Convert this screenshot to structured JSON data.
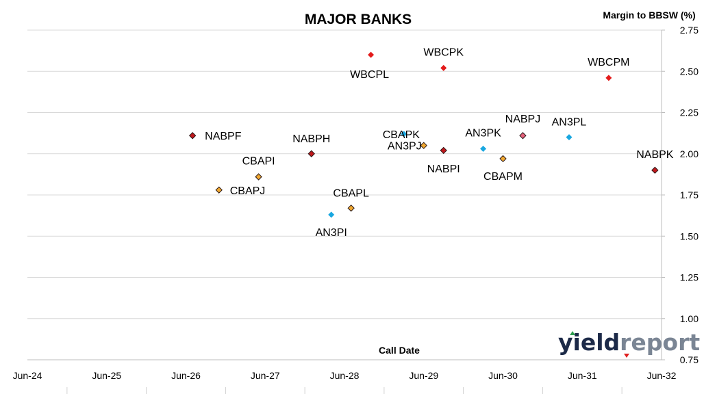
{
  "chart_data": {
    "type": "scatter",
    "title": "MAJOR BANKS",
    "ylabel": "Margin to BBSW (%)",
    "xlabel": "Call Date",
    "x_ticks": [
      "Jun-24",
      "Jun-25",
      "Jun-26",
      "Jun-27",
      "Jun-28",
      "Jun-29",
      "Jun-30",
      "Jun-31",
      "Jun-32"
    ],
    "y_ticks": [
      "2.75",
      "2.50",
      "2.25",
      "2.00",
      "1.75",
      "1.50",
      "1.25",
      "1.00",
      "0.75"
    ],
    "xlim": [
      "Jun-24",
      "Jun-32"
    ],
    "ylim": [
      0.75,
      2.75
    ],
    "y_axis_side": "right",
    "grid": "horizontal",
    "colors": {
      "red": "#e31b1b",
      "dark_red": "#c0181c",
      "orange": "#f0a830",
      "blue": "#19a7e0",
      "pink": "#e4607a"
    },
    "points": [
      {
        "label": "NABPF",
        "x": "2026-07",
        "y": 2.11,
        "color": "dark_red",
        "outlined": true
      },
      {
        "label": "CBAPJ",
        "x": "2026-11",
        "y": 1.78,
        "color": "orange",
        "outlined": true
      },
      {
        "label": "CBAPI",
        "x": "2027-05",
        "y": 1.86,
        "color": "orange",
        "outlined": true
      },
      {
        "label": "NABPH",
        "x": "2028-01",
        "y": 2.0,
        "color": "dark_red",
        "outlined": true
      },
      {
        "label": "AN3PI",
        "x": "2028-04",
        "y": 1.63,
        "color": "blue",
        "outlined": false
      },
      {
        "label": "CBAPL",
        "x": "2028-07",
        "y": 1.67,
        "color": "orange",
        "outlined": true
      },
      {
        "label": "WBCPL",
        "x": "2028-10",
        "y": 2.6,
        "color": "red",
        "outlined": false
      },
      {
        "label": "CBAPK",
        "x": "2029-03",
        "y": 2.12,
        "color": "blue",
        "outlined": false
      },
      {
        "label": "AN3PJ",
        "x": "2029-06",
        "y": 2.05,
        "color": "orange",
        "outlined": true
      },
      {
        "label": "WBCPK",
        "x": "2029-09",
        "y": 2.52,
        "color": "red",
        "outlined": false
      },
      {
        "label": "NABPI",
        "x": "2029-09",
        "y": 2.02,
        "color": "dark_red",
        "outlined": true
      },
      {
        "label": "AN3PK",
        "x": "2030-03",
        "y": 2.03,
        "color": "blue",
        "outlined": false
      },
      {
        "label": "CBAPM",
        "x": "2030-06",
        "y": 1.97,
        "color": "orange",
        "outlined": true
      },
      {
        "label": "NABPJ",
        "x": "2030-09",
        "y": 2.11,
        "color": "pink",
        "outlined": true
      },
      {
        "label": "AN3PL",
        "x": "2031-04",
        "y": 2.1,
        "color": "blue",
        "outlined": false
      },
      {
        "label": "WBCPM",
        "x": "2031-10",
        "y": 2.46,
        "color": "red",
        "outlined": false
      },
      {
        "label": "NABPK",
        "x": "2032-05",
        "y": 1.9,
        "color": "dark_red",
        "outlined": true
      }
    ]
  },
  "logo": {
    "text_dark": "yield",
    "text_light": "report",
    "color_dark": "#1c2a48",
    "color_light": "#7a8594",
    "accent_up": "#2e9e4f",
    "accent_down": "#e02020"
  }
}
